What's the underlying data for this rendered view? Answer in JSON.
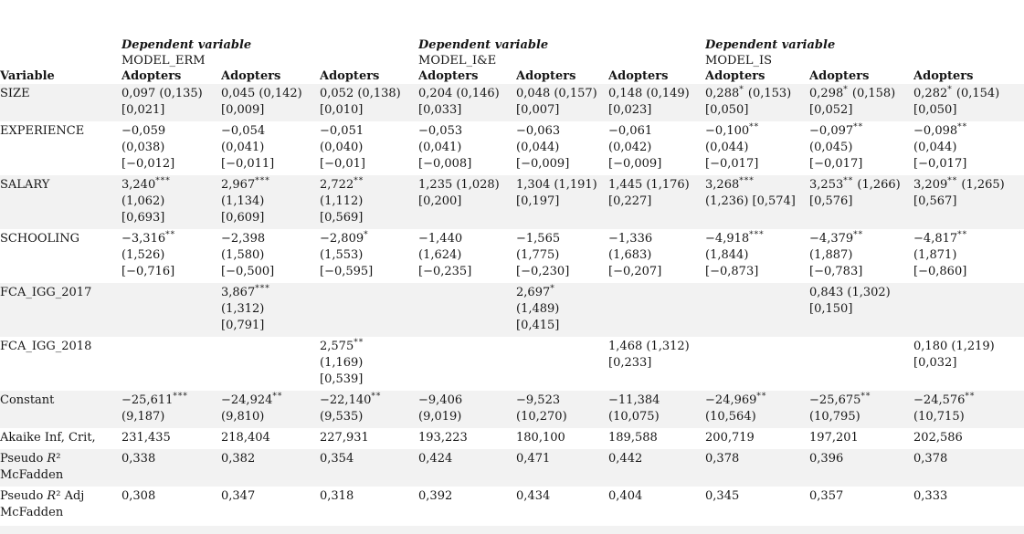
{
  "table": {
    "groups": [
      {
        "dep_label": "Dependent variable",
        "model": "MODEL_ERM"
      },
      {
        "dep_label": "Dependent variable",
        "model": "MODEL_I&E"
      },
      {
        "dep_label": "Dependent variable",
        "model": "MODEL_IS"
      }
    ],
    "variable_header": "Variable",
    "column_header": "Adopters",
    "rows": [
      {
        "variable": "SIZE",
        "cells": [
          "0,097 (0,135) [0,021]",
          "0,045 (0,142) [0,009]",
          "0,052 (0,138) [0,010]",
          "0,204 (0,146) [0,033]",
          "0,048 (0,157) [0,007]",
          "0,148 (0,149) [0,023]",
          "0,288^* (0,153) [0,050]",
          "0,298^* (0,158) [0,052]",
          "0,282^* (0,154) [0,050]"
        ]
      },
      {
        "variable": "EXPERIENCE",
        "cells": [
          "−0,059 (0,038) [−0,012]",
          "−0,054 (0,041) [−0,011]",
          "−0,051 (0,040) [−0,01]",
          "−0,053 (0,041) [−0,008]",
          "−0,063 (0,044) [−0,009]",
          "−0,061 (0,042) [−0,009]",
          "−0,100^** (0,044) [−0,017]",
          "−0,097^** (0,045) [−0,017]",
          "−0,098^** (0,044) [−0,017]"
        ]
      },
      {
        "variable": "SALARY",
        "cells": [
          "3,240^*** (1,062) [0,693]",
          "2,967^*** (1,134) [0,609]",
          "2,722^** (1,112) [0,569]",
          "1,235 (1,028) [0,200]",
          "1,304 (1,191) [0,197]",
          "1,445 (1,176) [0,227]",
          "3,268^*** (1,236) [0,574]",
          "3,253^** (1,266) [0,576]",
          "3,209^** (1,265) [0,567]"
        ]
      },
      {
        "variable": "SCHOOLING",
        "cells": [
          "−3,316^** (1,526) [−0,716]",
          "−2,398 (1,580) [−0,500]",
          "−2,809^* (1,553) [−0,595]",
          "−1,440 (1,624) [−0,235]",
          "−1,565 (1,775) [−0,230]",
          "−1,336 (1,683) [−0,207]",
          "−4,918^*** (1,844) [−0,873]",
          "−4,379^** (1,887) [−0,783]",
          "−4,817^** (1,871) [−0,860]"
        ]
      },
      {
        "variable": "FCA_IGG_2017",
        "cells": [
          "",
          "3,867^*** (1,312) [0,791]",
          "",
          "",
          "2,697^* (1,489) [0,415]",
          "",
          "",
          "0,843 (1,302) [0,150]",
          ""
        ]
      },
      {
        "variable": "FCA_IGG_2018",
        "cells": [
          "",
          "",
          "2,575^** (1,169) [0,539]",
          "",
          "",
          "1,468 (1,312) [0,233]",
          "",
          "",
          "0,180 (1,219) [0,032]"
        ]
      },
      {
        "variable": "Constant",
        "cells": [
          "−25,611^*** (9,187)",
          "−24,924^** (9,810)",
          "−22,140^** (9,535)",
          "−9,406 (9,019)",
          "−9,523 (10,270)",
          "−11,384 (10,075)",
          "−24,969^** (10,564)",
          "−25,675^** (10,795)",
          "−24,576^** (10,715)"
        ]
      },
      {
        "variable": "Akaike Inf, Crit,",
        "cells": [
          "231,435",
          "218,404",
          "227,931",
          "193,223",
          "180,100",
          "189,588",
          "200,719",
          "197,201",
          "202,586"
        ]
      },
      {
        "variable": "Pseudo R² McFadden",
        "cells": [
          "0,338",
          "0,382",
          "0,354",
          "0,424",
          "0,471",
          "0,442",
          "0,378",
          "0,396",
          "0,378"
        ]
      },
      {
        "variable": "Pseudo R² Adj McFadden",
        "cells": [
          "0,308",
          "0,347",
          "0,318",
          "0,392",
          "0,434",
          "0,404",
          "0,345",
          "0,357",
          "0,333"
        ]
      }
    ]
  },
  "colors": {
    "background": "#ffffff",
    "stripe": "#f2f2f2",
    "text": "#161616"
  }
}
